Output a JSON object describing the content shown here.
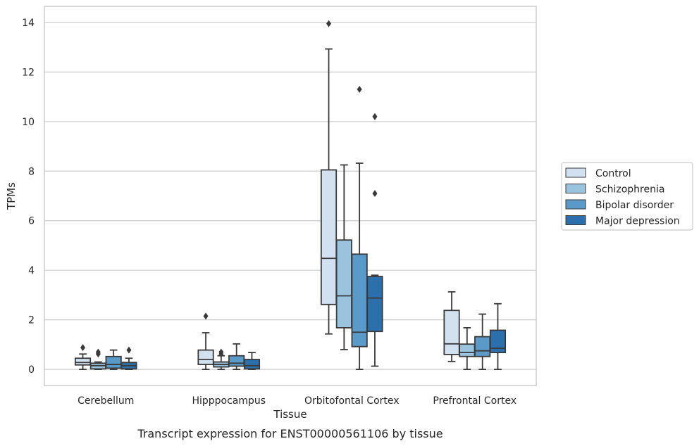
{
  "chart_data": {
    "type": "boxplot",
    "caption": "Transcript expression for ENST00000561106 by tissue",
    "xlabel": "Tissue",
    "ylabel": "TPMs",
    "ylim": [
      -0.65,
      14.65
    ],
    "yticks": [
      0,
      2,
      4,
      6,
      8,
      10,
      12,
      14
    ],
    "grid": true,
    "legend_position": "right",
    "categories": [
      "Cerebellum",
      "Hipppocampus",
      "Orbitofontal Cortex",
      "Prefrontal Cortex"
    ],
    "series": [
      {
        "name": "Control",
        "color": "#d1e1f0",
        "boxes": [
          {
            "whislo": 0.0,
            "q1": 0.18,
            "med": 0.28,
            "q3": 0.45,
            "whishi": 0.62,
            "fliers": [
              0.88
            ]
          },
          {
            "whislo": 0.0,
            "q1": 0.2,
            "med": 0.4,
            "q3": 0.78,
            "whishi": 1.48,
            "fliers": [
              2.15
            ]
          },
          {
            "whislo": 1.43,
            "q1": 2.62,
            "med": 4.48,
            "q3": 8.05,
            "whishi": 12.93,
            "fliers": [
              13.95
            ]
          },
          {
            "whislo": 0.32,
            "q1": 0.6,
            "med": 1.03,
            "q3": 2.38,
            "whishi": 3.13,
            "fliers": []
          }
        ]
      },
      {
        "name": "Schizophrenia",
        "color": "#9ac4de",
        "boxes": [
          {
            "whislo": 0.0,
            "q1": 0.02,
            "med": 0.15,
            "q3": 0.25,
            "whishi": 0.3,
            "fliers": [
              0.62,
              0.7
            ]
          },
          {
            "whislo": 0.0,
            "q1": 0.1,
            "med": 0.2,
            "q3": 0.3,
            "whishi": 0.55,
            "fliers": [
              0.62,
              0.7
            ]
          },
          {
            "whislo": 0.8,
            "q1": 1.68,
            "med": 2.97,
            "q3": 5.22,
            "whishi": 8.25,
            "fliers": []
          },
          {
            "whislo": 0.0,
            "q1": 0.52,
            "med": 0.68,
            "q3": 1.02,
            "whishi": 1.68,
            "fliers": []
          }
        ]
      },
      {
        "name": "Bipolar disorder",
        "color": "#5a9ac9",
        "boxes": [
          {
            "whislo": 0.0,
            "q1": 0.05,
            "med": 0.2,
            "q3": 0.52,
            "whishi": 0.78,
            "fliers": []
          },
          {
            "whislo": 0.0,
            "q1": 0.13,
            "med": 0.25,
            "q3": 0.55,
            "whishi": 1.03,
            "fliers": []
          },
          {
            "whislo": 0.0,
            "q1": 0.92,
            "med": 1.5,
            "q3": 4.65,
            "whishi": 8.32,
            "fliers": [
              11.3
            ]
          },
          {
            "whislo": 0.0,
            "q1": 0.52,
            "med": 0.75,
            "q3": 1.32,
            "whishi": 2.23,
            "fliers": []
          }
        ]
      },
      {
        "name": "Major depression",
        "color": "#2c6fad",
        "boxes": [
          {
            "whislo": 0.0,
            "q1": 0.02,
            "med": 0.15,
            "q3": 0.28,
            "whishi": 0.45,
            "fliers": [
              0.78
            ]
          },
          {
            "whislo": 0.0,
            "q1": 0.02,
            "med": 0.15,
            "q3": 0.4,
            "whishi": 0.68,
            "fliers": []
          },
          {
            "whislo": 0.13,
            "q1": 1.53,
            "med": 2.88,
            "q3": 3.75,
            "whishi": 3.8,
            "fliers": [
              7.1,
              10.2
            ]
          },
          {
            "whislo": 0.0,
            "q1": 0.68,
            "med": 0.85,
            "q3": 1.58,
            "whishi": 2.65,
            "fliers": []
          }
        ]
      }
    ]
  }
}
